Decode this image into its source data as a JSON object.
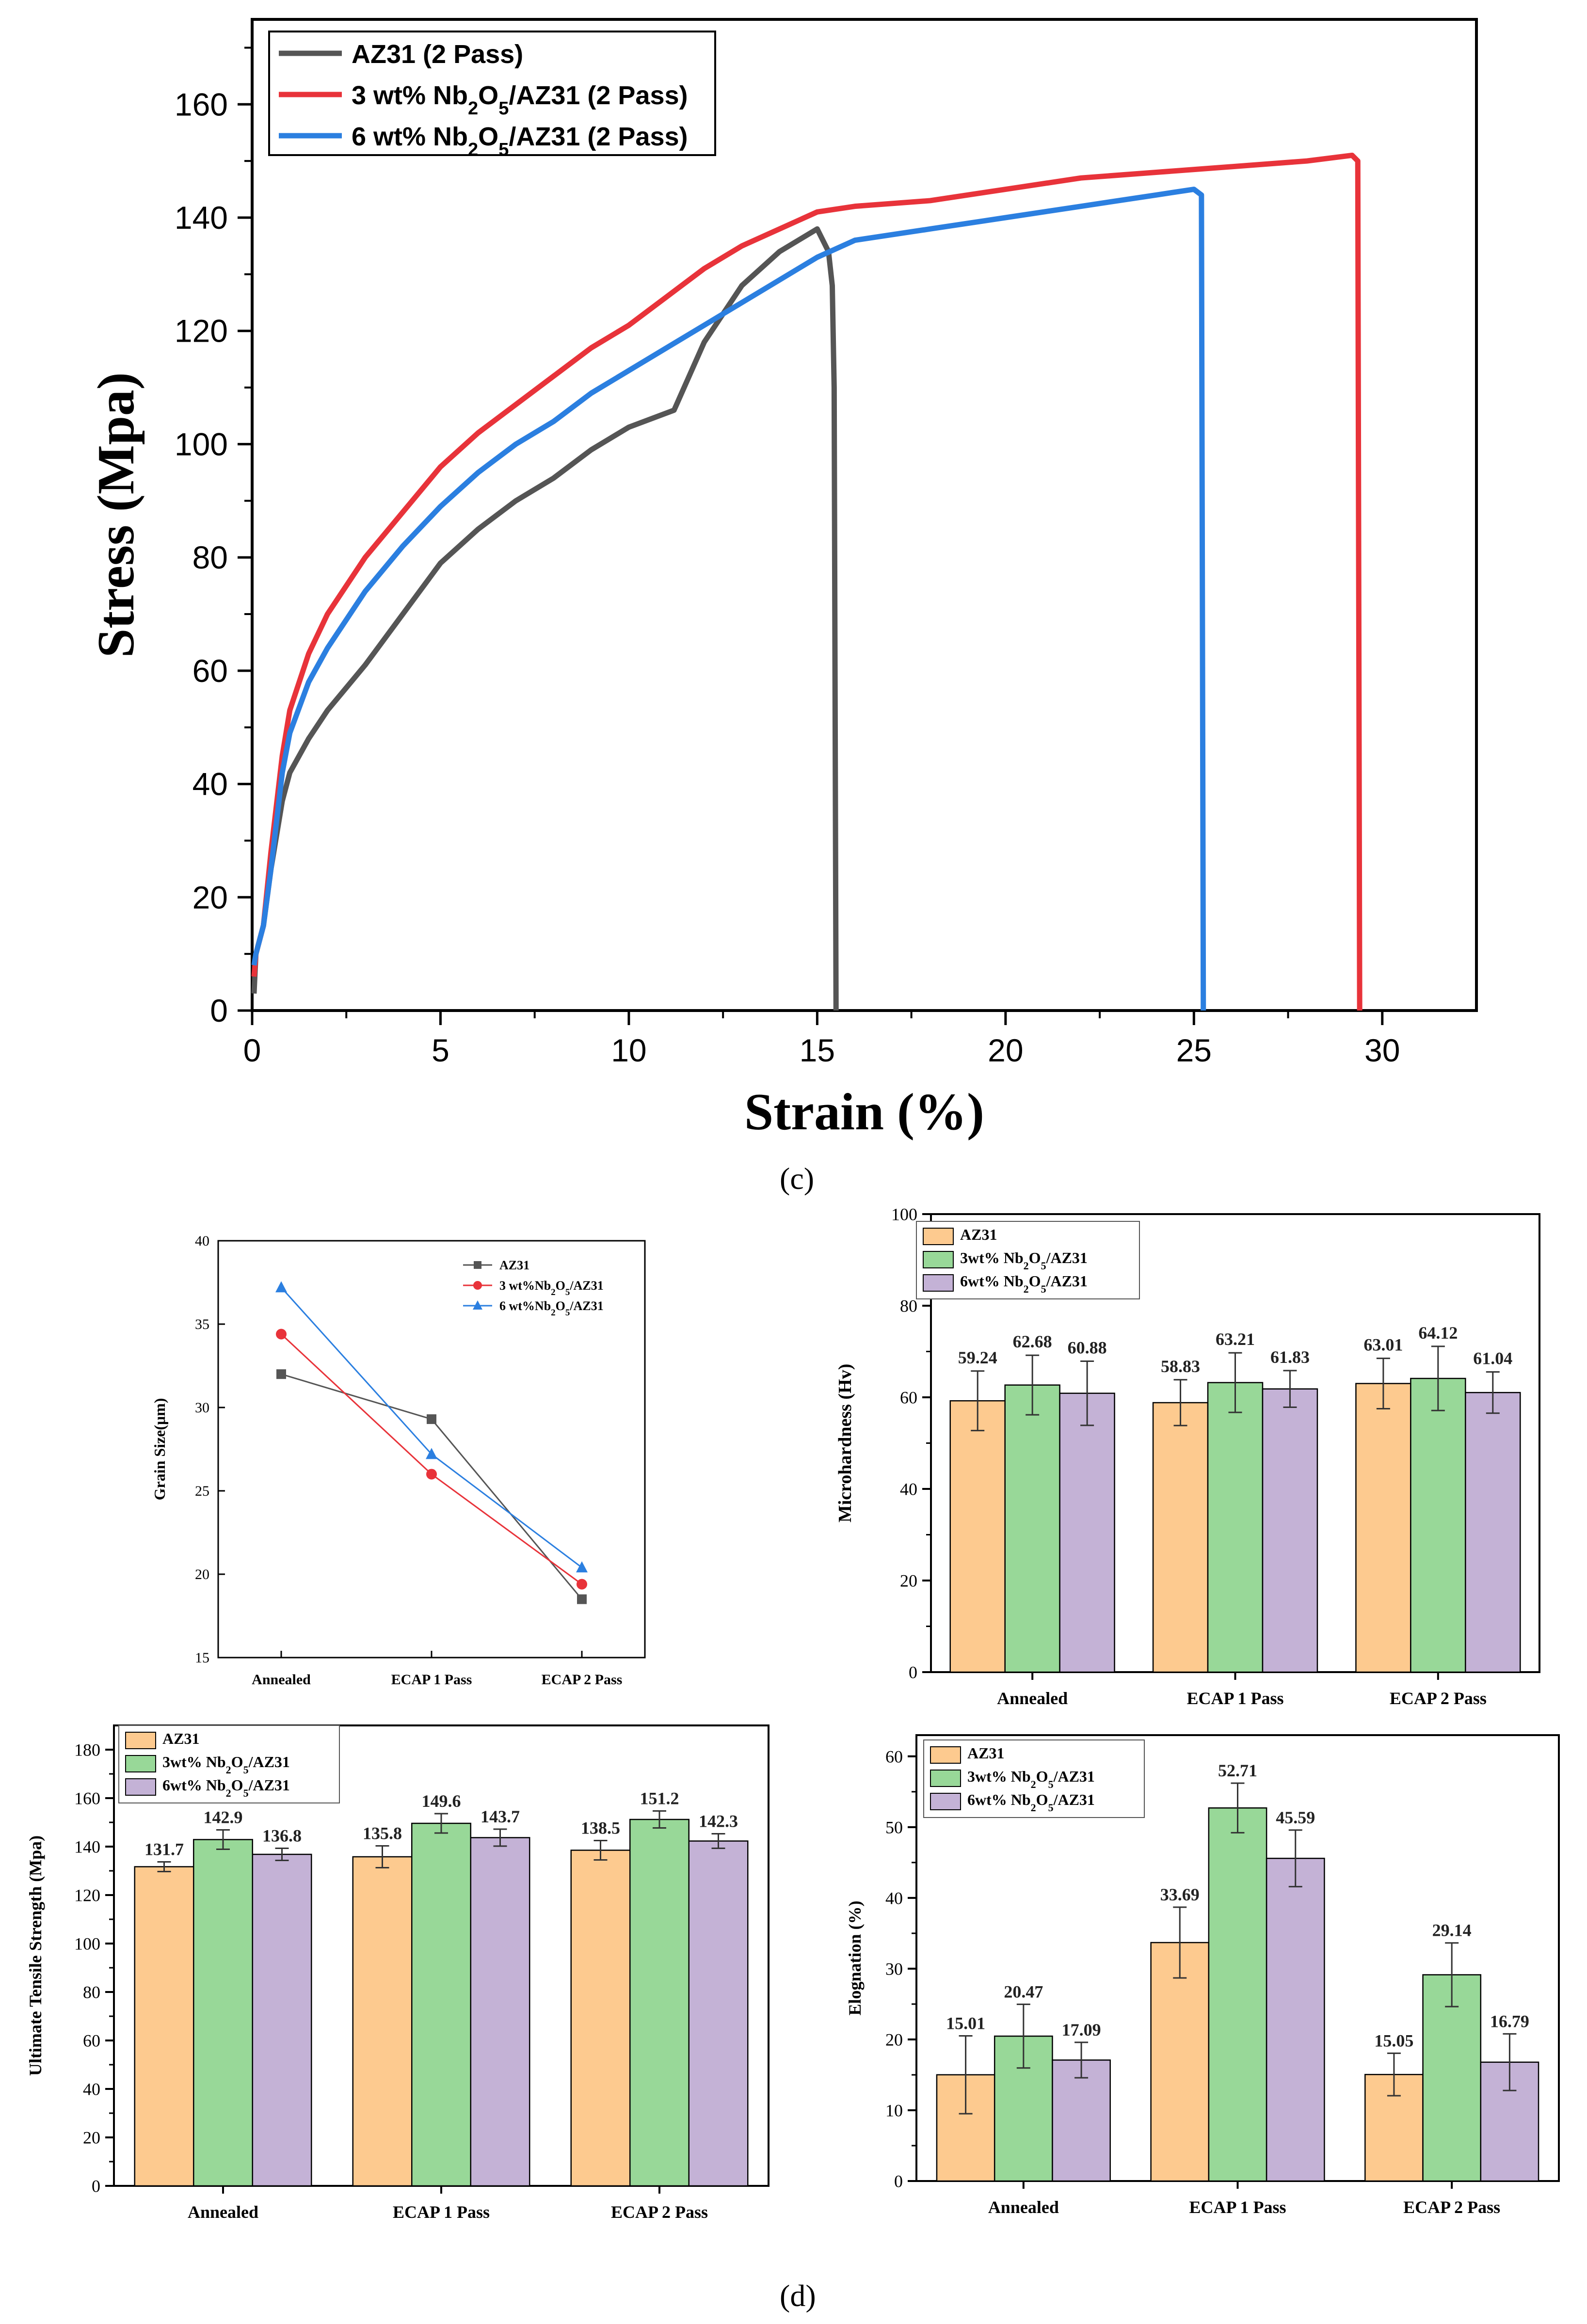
{
  "panel_labels": {
    "c": "(c)",
    "d": "(d)"
  },
  "chart_data": [
    {
      "id": "stress_strain",
      "type": "line",
      "xlabel": "Strain (%)",
      "ylabel": "Stress (Mpa)",
      "xlim": [
        0,
        32.5
      ],
      "ylim": [
        0,
        175
      ],
      "xticks": [
        0,
        5,
        10,
        15,
        20,
        25,
        30
      ],
      "yticks": [
        0,
        20,
        40,
        60,
        80,
        100,
        120,
        140,
        160
      ],
      "legend_position": "top-left",
      "series": [
        {
          "name": "AZ31 (2 Pass)",
          "color": "#555555",
          "x": [
            0.05,
            0.1,
            0.3,
            0.5,
            0.8,
            1.0,
            1.5,
            2.0,
            3.0,
            4.0,
            5.0,
            6.0,
            7.0,
            8.0,
            9.0,
            10.0,
            11.2,
            12.0,
            13.0,
            14.0,
            15.0,
            15.3,
            15.4,
            15.45,
            15.5
          ],
          "y": [
            3,
            10,
            15,
            25,
            37,
            42,
            48,
            53,
            61,
            70,
            79,
            85,
            90,
            94,
            99,
            103,
            106,
            118,
            128,
            134,
            138,
            134,
            128,
            110,
            0
          ]
        },
        {
          "name": "3 wt% Nb2O5/AZ31 (2 Pass)",
          "color": "#e8333a",
          "x": [
            0.05,
            0.1,
            0.3,
            0.5,
            0.8,
            1.0,
            1.5,
            2.0,
            3.0,
            4.0,
            5.0,
            6.0,
            7.0,
            8.0,
            9.0,
            10.0,
            11.0,
            12.0,
            13.0,
            14.0,
            15.0,
            16.0,
            18.0,
            20.0,
            22.0,
            24.0,
            26.0,
            28.0,
            29.2,
            29.35,
            29.4
          ],
          "y": [
            6,
            10,
            15,
            28,
            45,
            53,
            63,
            70,
            80,
            88,
            96,
            102,
            107,
            112,
            117,
            121,
            126,
            131,
            135,
            138,
            141,
            142,
            143,
            145,
            147,
            148,
            149,
            150,
            151,
            150,
            0
          ]
        },
        {
          "name": "6 wt% Nb2O5/AZ31 (2 Pass)",
          "color": "#2b7fe0",
          "x": [
            0.05,
            0.1,
            0.3,
            0.5,
            0.8,
            1.0,
            1.5,
            2.0,
            3.0,
            4.0,
            5.0,
            6.0,
            7.0,
            8.0,
            9.0,
            10.0,
            11.0,
            12.0,
            13.0,
            14.0,
            15.0,
            16.0,
            18.0,
            20.0,
            22.0,
            24.0,
            25.0,
            25.2,
            25.25
          ],
          "y": [
            8,
            10,
            15,
            25,
            42,
            49,
            58,
            64,
            74,
            82,
            89,
            95,
            100,
            104,
            109,
            113,
            117,
            121,
            125,
            129,
            133,
            136,
            138,
            140,
            142,
            144,
            145,
            144,
            0
          ]
        }
      ]
    },
    {
      "id": "grain_size",
      "type": "line",
      "ylabel": "Grain Size(μm)",
      "categories": [
        "Annealed",
        "ECAP 1 Pass",
        "ECAP 2 Pass"
      ],
      "ylim": [
        15,
        40
      ],
      "yticks": [
        15,
        20,
        25,
        30,
        35,
        40
      ],
      "legend_position": "top-right",
      "series": [
        {
          "name": "AZ31",
          "color": "#555555",
          "marker": "square",
          "values": [
            32.0,
            29.3,
            18.5
          ]
        },
        {
          "name": "3 wt%Nb2O5/AZ31",
          "color": "#e8333a",
          "marker": "circle",
          "values": [
            34.4,
            26.0,
            19.4
          ]
        },
        {
          "name": "6 wt%Nb2O5/AZ31",
          "color": "#2b7fe0",
          "marker": "triangle",
          "values": [
            37.2,
            27.2,
            20.4
          ]
        }
      ]
    },
    {
      "id": "microhardness",
      "type": "bar",
      "ylabel": "Microhardness (Hv)",
      "categories": [
        "Annealed",
        "ECAP 1 Pass",
        "ECAP 2 Pass"
      ],
      "ylim": [
        0,
        100
      ],
      "yticks": [
        0,
        20,
        40,
        60,
        80,
        100
      ],
      "legend_position": "top-left",
      "series": [
        {
          "name": "AZ31",
          "color": "#fdca8f",
          "values": [
            59.24,
            58.83,
            63.01
          ],
          "errors": [
            6.5,
            5,
            5.5
          ],
          "labels": [
            "59.24",
            "58.83",
            "63.01"
          ]
        },
        {
          "name": "3wt% Nb2O5/AZ31",
          "color": "#98d898",
          "values": [
            62.68,
            63.21,
            64.12
          ],
          "errors": [
            6.5,
            6.5,
            7
          ],
          "labels": [
            "62.68",
            "63.21",
            "64.12"
          ]
        },
        {
          "name": "6wt% Nb2O5/AZ31",
          "color": "#c4b2d6",
          "values": [
            60.88,
            61.83,
            61.04
          ],
          "errors": [
            7,
            4,
            4.5
          ],
          "labels": [
            "60.88",
            "61.83",
            "61.04"
          ]
        }
      ]
    },
    {
      "id": "uts",
      "type": "bar",
      "ylabel": "Ultimate Tensile Strength (Mpa)",
      "categories": [
        "Annealed",
        "ECAP 1 Pass",
        "ECAP 2 Pass"
      ],
      "ylim": [
        0,
        190
      ],
      "yticks": [
        0,
        20,
        40,
        60,
        80,
        100,
        120,
        140,
        160,
        180
      ],
      "legend_position": "top-left",
      "series": [
        {
          "name": "AZ31",
          "color": "#fdca8f",
          "values": [
            131.7,
            135.8,
            138.5
          ],
          "errors": [
            2,
            4.5,
            4
          ],
          "labels": [
            "131.7",
            "135.8",
            "138.5"
          ]
        },
        {
          "name": "3wt% Nb2O5/AZ31",
          "color": "#98d898",
          "values": [
            142.9,
            149.6,
            151.2
          ],
          "errors": [
            4,
            4,
            3.5
          ],
          "labels": [
            "142.9",
            "149.6",
            "151.2"
          ]
        },
        {
          "name": "6wt% Nb2O5/AZ31",
          "color": "#c4b2d6",
          "values": [
            136.8,
            143.7,
            142.3
          ],
          "errors": [
            2.5,
            3.5,
            3
          ],
          "labels": [
            "136.8",
            "143.7",
            "142.3"
          ]
        }
      ]
    },
    {
      "id": "elongation",
      "type": "bar",
      "ylabel": "Elognation (%)",
      "categories": [
        "Annealed",
        "ECAP 1 Pass",
        "ECAP 2 Pass"
      ],
      "ylim": [
        0,
        63
      ],
      "yticks": [
        0,
        10,
        20,
        30,
        40,
        50,
        60
      ],
      "legend_position": "top-left",
      "series": [
        {
          "name": "AZ31",
          "color": "#fdca8f",
          "values": [
            15.01,
            33.69,
            15.05
          ],
          "errors": [
            5.5,
            5,
            3
          ],
          "labels": [
            "15.01",
            "33.69",
            "15.05"
          ]
        },
        {
          "name": "3wt% Nb2O5/AZ31",
          "color": "#98d898",
          "values": [
            20.47,
            52.71,
            29.14
          ],
          "errors": [
            4.5,
            3.5,
            4.5
          ],
          "labels": [
            "20.47",
            "52.71",
            "29.14"
          ]
        },
        {
          "name": "6wt% Nb2O5/AZ31",
          "color": "#c4b2d6",
          "values": [
            17.09,
            45.59,
            16.79
          ],
          "errors": [
            2.5,
            4,
            4
          ],
          "labels": [
            "17.09",
            "45.59",
            "16.79"
          ]
        }
      ]
    }
  ]
}
